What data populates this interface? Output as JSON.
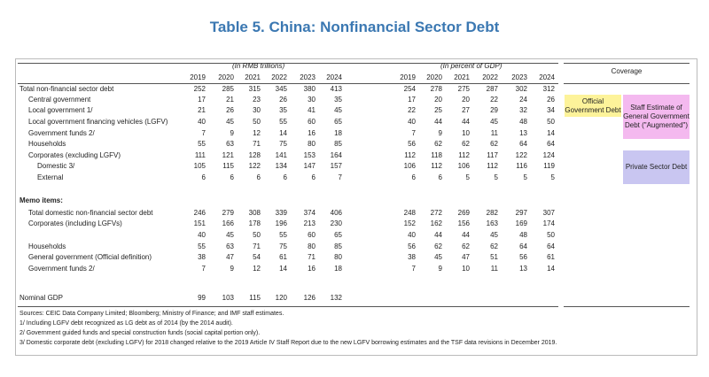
{
  "title": "Table 5. China: Nonfinancial Sector Debt",
  "table": {
    "units": [
      "(In RMB trillions)",
      "(In percent of GDP)"
    ],
    "coverage_header": "Coverage",
    "years": [
      2019,
      2020,
      2021,
      2022,
      2023,
      2024
    ],
    "rows": [
      {
        "label": "Total non-financial sector debt",
        "rmb": [
          252,
          285,
          315,
          345,
          380,
          413
        ],
        "pct": [
          254,
          278,
          275,
          287,
          302,
          312
        ]
      },
      {
        "label": "Central government",
        "rmb": [
          17,
          21,
          23,
          26,
          30,
          35
        ],
        "pct": [
          17,
          20,
          20,
          22,
          24,
          26
        ]
      },
      {
        "label": "Local government 1/",
        "rmb": [
          21,
          26,
          30,
          35,
          41,
          45
        ],
        "pct": [
          22,
          25,
          27,
          29,
          32,
          34
        ]
      },
      {
        "label": "Local government financing vehicles (LGFV)",
        "rmb": [
          40,
          45,
          50,
          55,
          60,
          65
        ],
        "pct": [
          40,
          44,
          44,
          45,
          48,
          50
        ]
      },
      {
        "label": "Government funds 2/",
        "rmb": [
          7,
          9,
          12,
          14,
          16,
          18
        ],
        "pct": [
          7,
          9,
          10,
          11,
          13,
          14
        ]
      },
      {
        "label": "Households",
        "rmb": [
          55,
          63,
          71,
          75,
          80,
          85
        ],
        "pct": [
          56,
          62,
          62,
          62,
          64,
          64
        ]
      },
      {
        "label": "Corporates (excluding LGFV)",
        "rmb": [
          111,
          121,
          128,
          141,
          153,
          164
        ],
        "pct": [
          112,
          118,
          112,
          117,
          122,
          124
        ]
      },
      {
        "label": "Domestic 3/",
        "rmb": [
          105,
          115,
          122,
          134,
          147,
          157
        ],
        "pct": [
          106,
          112,
          106,
          112,
          116,
          119
        ]
      },
      {
        "label": "External",
        "rmb": [
          6,
          6,
          6,
          6,
          6,
          7
        ],
        "pct": [
          6,
          6,
          5,
          5,
          5,
          5
        ]
      }
    ],
    "memo_header": "Memo items:",
    "memo_rows": [
      {
        "label": "Total domestic non-financial sector debt",
        "rmb": [
          246,
          279,
          308,
          339,
          374,
          406
        ],
        "pct": [
          248,
          272,
          269,
          282,
          297,
          307
        ]
      },
      {
        "label": "Corporates (including LGFVs)",
        "rmb": [
          151,
          166,
          178,
          196,
          213,
          230
        ],
        "pct": [
          152,
          162,
          156,
          163,
          169,
          174
        ]
      },
      {
        "rmb": [
          40,
          45,
          50,
          55,
          60,
          65
        ],
        "pct": [
          40,
          44,
          44,
          45,
          48,
          50
        ]
      },
      {
        "label": "Households",
        "rmb": [
          55,
          63,
          71,
          75,
          80,
          85
        ],
        "pct": [
          56,
          62,
          62,
          62,
          64,
          64
        ]
      },
      {
        "label": "General government (Official definition)",
        "rmb": [
          38,
          47,
          54,
          61,
          71,
          80
        ],
        "pct": [
          38,
          45,
          47,
          51,
          56,
          61
        ]
      },
      {
        "label": "Government funds 2/",
        "rmb": [
          7,
          9,
          12,
          14,
          16,
          18
        ],
        "pct": [
          7,
          9,
          10,
          11,
          13,
          14
        ]
      }
    ],
    "gdp_row": {
      "label": "Nominal GDP",
      "rmb": [
        99,
        103,
        115,
        120,
        126,
        132
      ]
    }
  },
  "coverage": [
    "Official Government Debt",
    "Staff Estimate of General Government Debt (\"Augmented\")",
    "Private Sector Debt"
  ],
  "footnotes": [
    "Sources: CEIC Data Company Limited; Bloomberg; Ministry of Finance; and IMF staff estimates.",
    "1/ Including LGFV debt recognized as LG debt as of 2014 (by the 2014 audit).",
    "2/ Government guided funds and special construction funds (social capital portion only).",
    "3/ Domestic corporate debt (excluding LGFV) for 2018 changed relative to the 2019 Article IV Staff Report due to the new LGFV borrowing estimates and the TSF data revisions in December 2019."
  ]
}
